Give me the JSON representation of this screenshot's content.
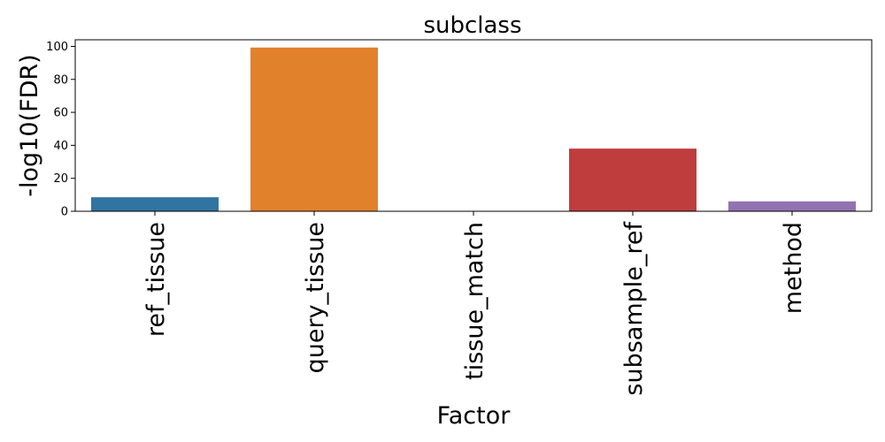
{
  "chart_data": {
    "type": "bar",
    "title": "subclass",
    "xlabel": "Factor",
    "ylabel": "-log10(FDR)",
    "categories": [
      "ref_tissue",
      "query_tissue",
      "tissue_match",
      "subsample_ref",
      "method"
    ],
    "values": [
      8.5,
      99.3,
      0,
      38,
      6
    ],
    "colors": [
      "#3274a1",
      "#e1812c",
      "#3a923a",
      "#c03d3e",
      "#9372b2"
    ],
    "ylim": [
      0,
      104
    ],
    "yticks": [
      0,
      20,
      40,
      60,
      80,
      100
    ],
    "grid": false,
    "legend": "none"
  }
}
